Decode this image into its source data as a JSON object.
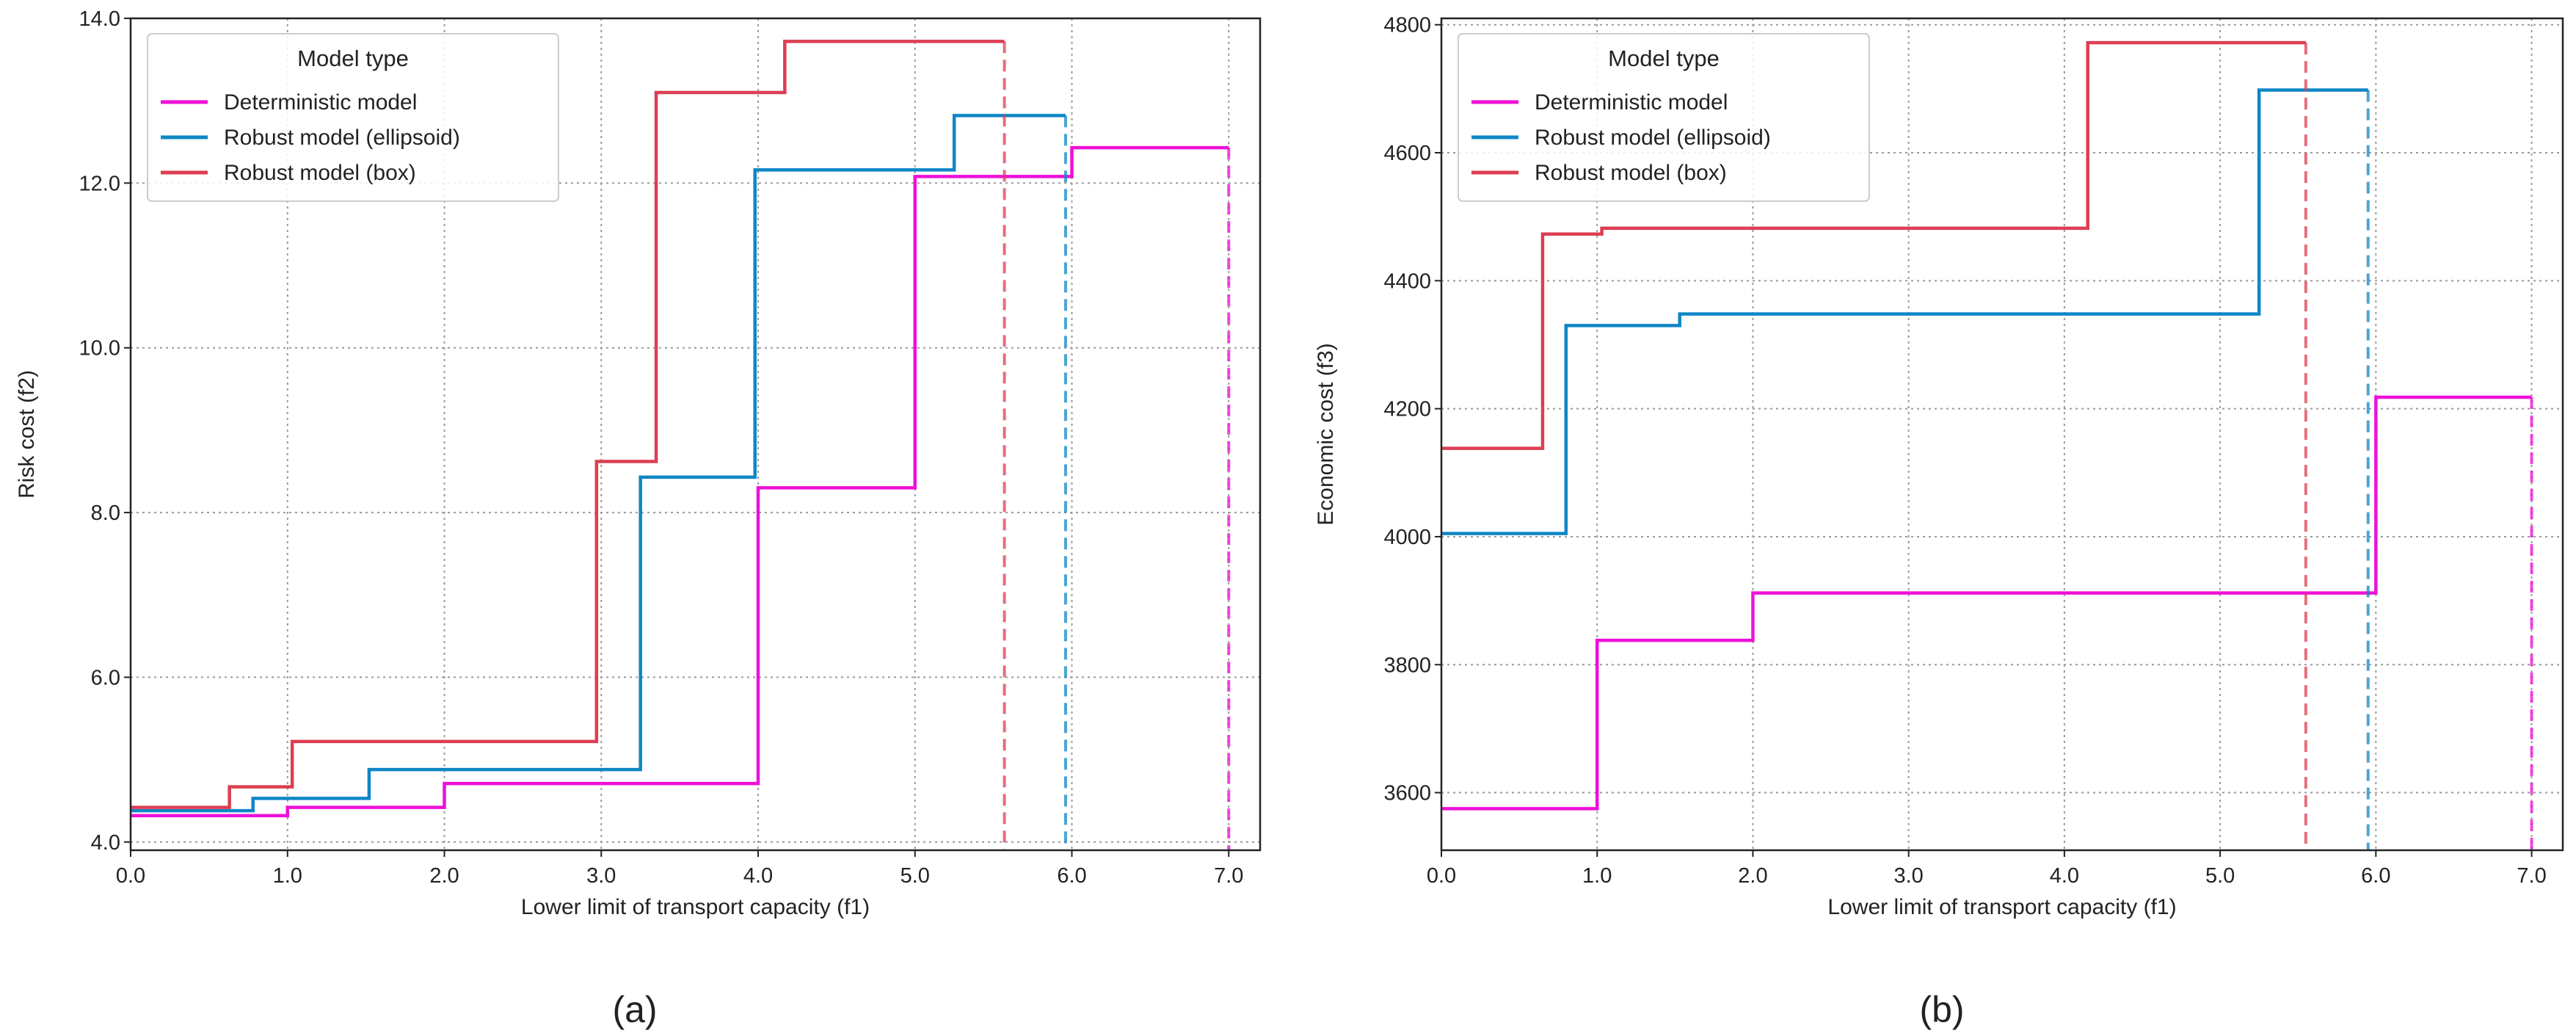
{
  "figure": {
    "panel_labels": [
      "(a)",
      "(b)"
    ]
  },
  "chart_data": [
    {
      "type": "line",
      "step": true,
      "xlabel": "Lower limit of transport capacity (f1)",
      "ylabel": "Risk cost (f2)",
      "xlim": [
        0,
        7.2
      ],
      "ylim": [
        3.9,
        14.0
      ],
      "xticks": [
        0,
        1,
        2,
        3,
        4,
        5,
        6,
        7
      ],
      "xtick_labels": [
        "0.0",
        "1.0",
        "2.0",
        "3.0",
        "4.0",
        "5.0",
        "6.0",
        "7.0"
      ],
      "yticks": [
        4,
        6,
        8,
        10,
        12,
        14
      ],
      "ytick_labels": [
        "4.0",
        "6.0",
        "8.0",
        "10.0",
        "12.0",
        "14.0"
      ],
      "grid": true,
      "legend": {
        "title": "Model type",
        "position": "upper-left",
        "entries": [
          "Deterministic model",
          "Robust model (ellipsoid)",
          "Robust model (box)"
        ]
      },
      "series": [
        {
          "name": "Deterministic model",
          "color": "#ee10d8",
          "x": [
            0,
            1.0,
            2.0,
            4.0,
            5.0,
            6.0,
            7.0
          ],
          "y": [
            4.32,
            4.42,
            4.71,
            8.3,
            12.08,
            12.43,
            12.43
          ],
          "end_x": 7.0
        },
        {
          "name": "Robust model (ellipsoid)",
          "color": "#0f86c6",
          "x": [
            0,
            0.78,
            1.52,
            3.25,
            3.98,
            5.25,
            5.96
          ],
          "y": [
            4.38,
            4.53,
            4.88,
            8.43,
            12.16,
            12.82,
            12.82
          ],
          "end_x": 5.96
        },
        {
          "name": "Robust model (box)",
          "color": "#dd3e52",
          "x": [
            0,
            0.63,
            1.03,
            2.97,
            3.35,
            4.17,
            5.57
          ],
          "y": [
            4.42,
            4.67,
            5.22,
            8.62,
            13.1,
            13.72,
            13.72
          ],
          "end_x": 5.57
        }
      ]
    },
    {
      "type": "line",
      "step": true,
      "xlabel": "Lower limit of transport capacity (f1)",
      "ylabel": "Economic cost (f3)",
      "xlim": [
        0,
        7.2
      ],
      "ylim": [
        3510,
        4810
      ],
      "xticks": [
        0,
        1,
        2,
        3,
        4,
        5,
        6,
        7
      ],
      "xtick_labels": [
        "0.0",
        "1.0",
        "2.0",
        "3.0",
        "4.0",
        "5.0",
        "6.0",
        "7.0"
      ],
      "yticks": [
        3600,
        3800,
        4000,
        4200,
        4400,
        4600,
        4800
      ],
      "ytick_labels": [
        "3600",
        "3800",
        "4000",
        "4200",
        "4400",
        "4600",
        "4800"
      ],
      "grid": true,
      "legend": {
        "title": "Model type",
        "position": "upper-left",
        "entries": [
          "Deterministic model",
          "Robust model (ellipsoid)",
          "Robust model (box)"
        ]
      },
      "series": [
        {
          "name": "Deterministic model",
          "color": "#ee10d8",
          "x": [
            0,
            1.0,
            2.0,
            6.0,
            7.0
          ],
          "y": [
            3575,
            3838,
            3912,
            4218,
            4218
          ],
          "end_x": 7.0
        },
        {
          "name": "Robust model (ellipsoid)",
          "color": "#0f86c6",
          "x": [
            0,
            0.8,
            1.53,
            5.25,
            5.95
          ],
          "y": [
            4005,
            4330,
            4348,
            4698,
            4698
          ],
          "end_x": 5.95
        },
        {
          "name": "Robust model (box)",
          "color": "#dd3e52",
          "x": [
            0,
            0.65,
            1.03,
            4.15,
            5.55
          ],
          "y": [
            4138,
            4473,
            4482,
            4772,
            4772
          ],
          "end_x": 5.55
        }
      ]
    }
  ]
}
